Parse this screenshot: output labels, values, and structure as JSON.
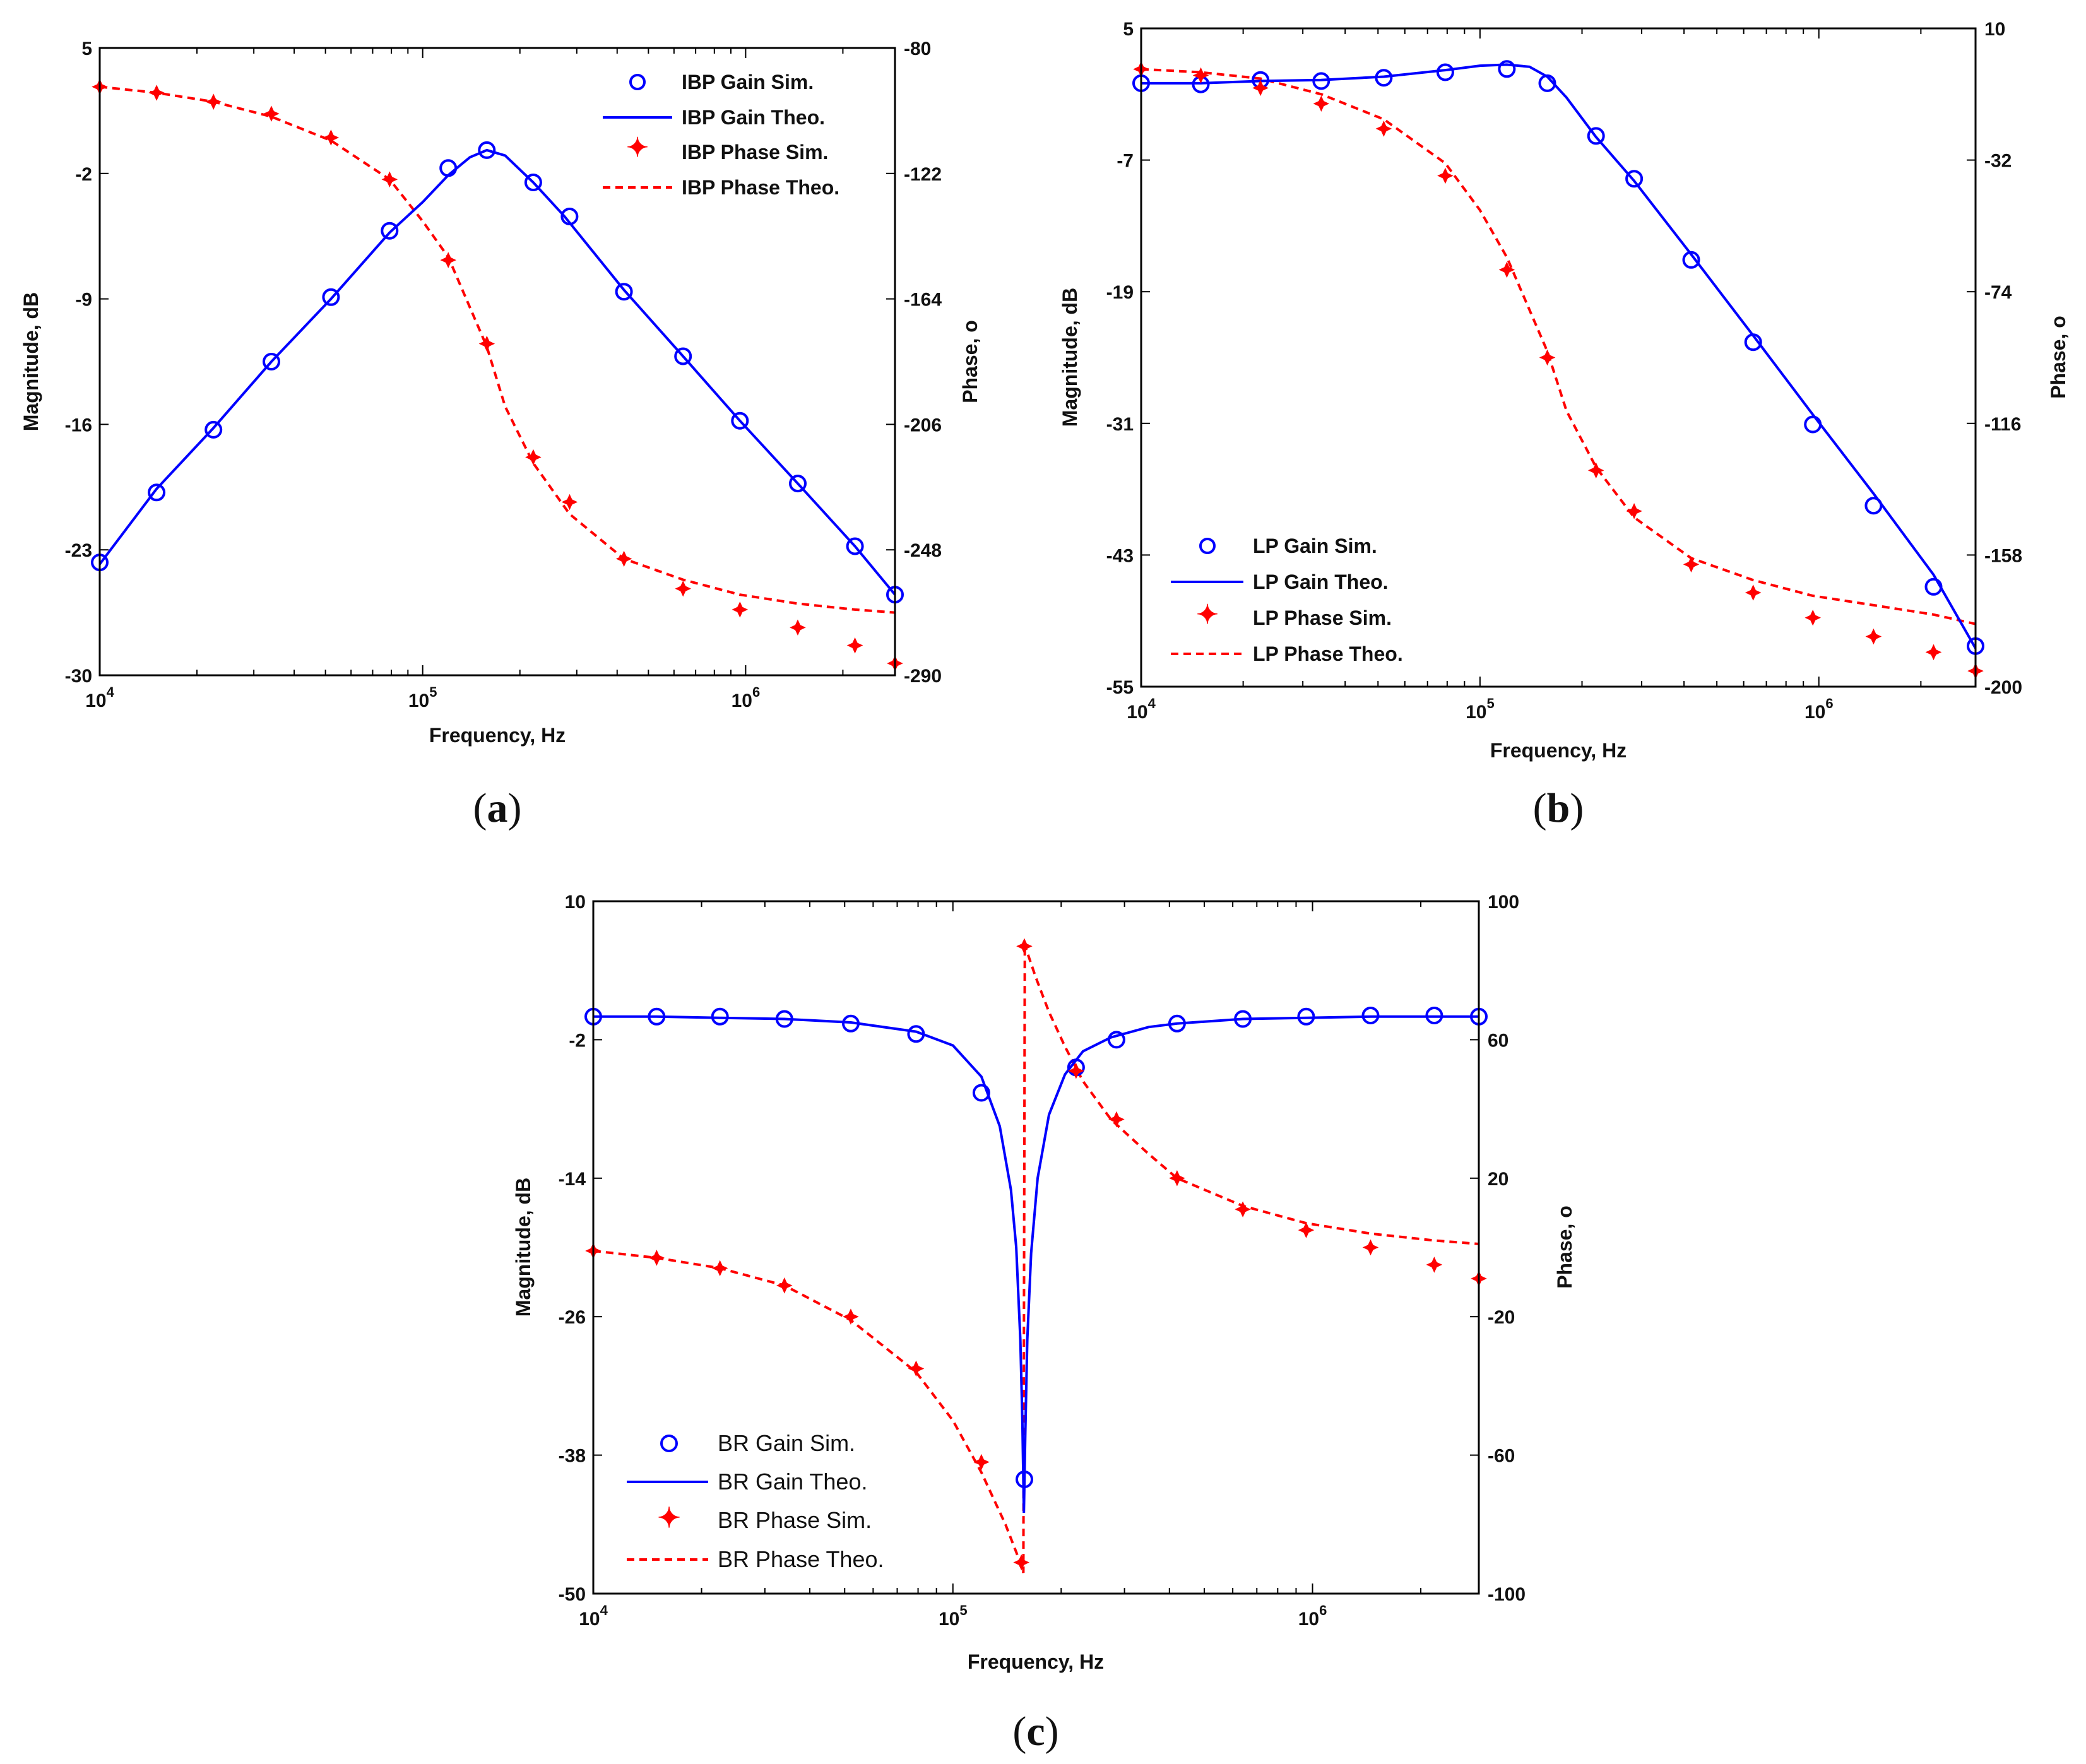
{
  "colors": {
    "gain": "#0000ff",
    "phase": "#ff0000",
    "axis": "#000000"
  },
  "chart_data": [
    {
      "id": "a",
      "type": "line",
      "caption": "a",
      "xlabel": "Frequency, Hz",
      "ylabel": "Magnitude, dB",
      "y2label": "Phase, o",
      "xscale": "log",
      "xlim": [
        10000,
        2900000
      ],
      "xticks": [
        {
          "label": "10",
          "exp": "4"
        },
        {
          "label": "10",
          "exp": "5"
        },
        {
          "label": "10",
          "exp": "6"
        }
      ],
      "xtick_values": [
        10000,
        100000,
        1000000
      ],
      "ylim": [
        -30,
        5
      ],
      "yticks": [
        5,
        -2,
        -9,
        -16,
        -23,
        -30
      ],
      "y2lim": [
        -290,
        -80
      ],
      "y2ticks": [
        -80,
        -122,
        -164,
        -206,
        -248,
        -290
      ],
      "legend_position": "top-right",
      "gain_theory": {
        "name": "IBP Gain Theo.",
        "x": [
          10000,
          15000,
          22500,
          34000,
          52000,
          79000,
          100000,
          120000,
          140000,
          158000,
          180000,
          220000,
          275000,
          420000,
          640000,
          960000,
          1450000,
          2180000,
          2900000
        ],
        "y": [
          -23.8,
          -19.6,
          -16.2,
          -12.5,
          -9.0,
          -5.3,
          -3.6,
          -2.1,
          -1.1,
          -0.7,
          -1.0,
          -2.5,
          -4.4,
          -8.5,
          -12.2,
          -15.8,
          -19.3,
          -22.8,
          -25.5
        ]
      },
      "gain_sim": {
        "name": "IBP Gain Sim.",
        "x": [
          10000,
          15000,
          22500,
          34000,
          52000,
          79000,
          120000,
          158000,
          220000,
          285000,
          420000,
          640000,
          960000,
          1450000,
          2180000,
          2900000
        ],
        "y": [
          -23.7,
          -19.8,
          -16.3,
          -12.5,
          -8.9,
          -5.2,
          -1.7,
          -0.7,
          -2.5,
          -4.4,
          -8.6,
          -12.2,
          -15.8,
          -19.3,
          -22.8,
          -25.5
        ]
      },
      "phase_theory": {
        "name": "IBP Phase Theo.",
        "x": [
          10000,
          15000,
          22500,
          34000,
          52000,
          79000,
          100000,
          120000,
          158000,
          180000,
          220000,
          285000,
          420000,
          640000,
          960000,
          1450000,
          2180000,
          2900000
        ],
        "y": [
          -93,
          -95,
          -98,
          -103,
          -111,
          -124,
          -138,
          -150,
          -180,
          -200,
          -219,
          -236,
          -251,
          -258,
          -263,
          -266,
          -268,
          -269
        ]
      },
      "phase_sim": {
        "name": "IBP Phase Sim.",
        "x": [
          10000,
          15000,
          22500,
          34000,
          52000,
          79000,
          120000,
          158000,
          220000,
          285000,
          420000,
          640000,
          960000,
          1450000,
          2180000,
          2900000
        ],
        "y": [
          -93,
          -95,
          -98,
          -102,
          -110,
          -124,
          -151,
          -179,
          -217,
          -232,
          -251,
          -261,
          -268,
          -274,
          -280,
          -286
        ]
      }
    },
    {
      "id": "b",
      "type": "line",
      "caption": "b",
      "xlabel": "Frequency, Hz",
      "ylabel": "Magnitude, dB",
      "y2label": "Phase, o",
      "xscale": "log",
      "xlim": [
        10000,
        2900000
      ],
      "xticks": [
        {
          "label": "10",
          "exp": "4"
        },
        {
          "label": "10",
          "exp": "5"
        },
        {
          "label": "10",
          "exp": "6"
        }
      ],
      "xtick_values": [
        10000,
        100000,
        1000000
      ],
      "ylim": [
        -55,
        5
      ],
      "yticks": [
        5,
        -7,
        -19,
        -31,
        -43,
        -55
      ],
      "y2lim": [
        -200,
        10
      ],
      "y2ticks": [
        10,
        -32,
        -74,
        -116,
        -158,
        -200
      ],
      "legend_position": "bottom-left",
      "gain_theory": {
        "name": "LP Gain Theo.",
        "x": [
          10000,
          15000,
          22500,
          34000,
          52000,
          79000,
          100000,
          120000,
          140000,
          158000,
          180000,
          220000,
          285000,
          420000,
          640000,
          960000,
          1450000,
          2180000,
          2900000
        ],
        "y": [
          0.0,
          0.0,
          0.2,
          0.3,
          0.6,
          1.2,
          1.6,
          1.7,
          1.5,
          0.6,
          -1.3,
          -4.9,
          -8.9,
          -15.6,
          -23.0,
          -30.2,
          -37.4,
          -44.8,
          -51.5
        ]
      },
      "gain_sim": {
        "name": "LP Gain Sim.",
        "x": [
          10000,
          15000,
          22500,
          34000,
          52000,
          79000,
          120000,
          158000,
          220000,
          285000,
          420000,
          640000,
          960000,
          1450000,
          2180000,
          2900000
        ],
        "y": [
          0.0,
          -0.1,
          0.3,
          0.2,
          0.5,
          1.0,
          1.3,
          0.0,
          -4.8,
          -8.7,
          -16.1,
          -23.6,
          -31.1,
          -38.5,
          -45.9,
          -51.3
        ]
      },
      "phase_theory": {
        "name": "LP Phase Theo.",
        "x": [
          10000,
          15000,
          22500,
          34000,
          52000,
          79000,
          100000,
          120000,
          158000,
          180000,
          220000,
          285000,
          420000,
          640000,
          960000,
          1450000,
          2180000,
          2900000
        ],
        "y": [
          -3,
          -4,
          -6,
          -11,
          -19,
          -33,
          -48,
          -63,
          -93,
          -112,
          -130,
          -146,
          -159,
          -166,
          -171,
          -174,
          -177,
          -180
        ]
      },
      "phase_sim": {
        "name": "LP Phase Sim.",
        "x": [
          10000,
          15000,
          22500,
          34000,
          52000,
          79000,
          120000,
          158000,
          220000,
          285000,
          420000,
          640000,
          960000,
          1450000,
          2180000,
          2900000
        ],
        "y": [
          -3,
          -5,
          -9,
          -14,
          -22,
          -37,
          -67,
          -95,
          -131,
          -144,
          -161,
          -170,
          -178,
          -184,
          -189,
          -195
        ]
      }
    },
    {
      "id": "c",
      "type": "line",
      "caption": "c",
      "xlabel": "Frequency, Hz",
      "ylabel": "Magnitude, dB",
      "y2label": "Phase, o",
      "xscale": "log",
      "xlim": [
        10000,
        2900000
      ],
      "xticks": [
        {
          "label": "10",
          "exp": "4"
        },
        {
          "label": "10",
          "exp": "5"
        },
        {
          "label": "10",
          "exp": "6"
        }
      ],
      "xtick_values": [
        10000,
        100000,
        1000000
      ],
      "ylim": [
        -50,
        10
      ],
      "yticks": [
        10,
        -2,
        -14,
        -26,
        -38,
        -50
      ],
      "y2lim": [
        -100,
        100
      ],
      "y2ticks": [
        100,
        60,
        20,
        -20,
        -60,
        -100
      ],
      "legend_position": "bottom-left",
      "gain_theory": {
        "name": "BR Gain Theo.",
        "x": [
          10000,
          15000,
          22500,
          34000,
          52000,
          79000,
          100000,
          120000,
          135000,
          145000,
          150000,
          154000,
          156000,
          157500,
          159000,
          161000,
          165000,
          172000,
          185000,
          205000,
          230000,
          275000,
          350000,
          420000,
          640000,
          960000,
          1450000,
          2180000,
          2900000
        ],
        "y": [
          0.0,
          0.0,
          -0.1,
          -0.2,
          -0.5,
          -1.3,
          -2.5,
          -5.2,
          -9.5,
          -15.0,
          -20.0,
          -28.0,
          -35.0,
          -43.0,
          -36.0,
          -28.0,
          -20.5,
          -14.0,
          -8.5,
          -5.0,
          -3.0,
          -1.8,
          -0.9,
          -0.6,
          -0.2,
          -0.1,
          0.0,
          0.0,
          0.0
        ]
      },
      "gain_sim": {
        "name": "BR Gain Sim.",
        "x": [
          10000,
          15000,
          22500,
          34000,
          52000,
          79000,
          120000,
          158000,
          220000,
          285000,
          420000,
          640000,
          960000,
          1450000,
          2180000,
          2900000
        ],
        "y": [
          0.0,
          0.0,
          0.0,
          -0.2,
          -0.6,
          -1.5,
          -6.6,
          -40.1,
          -4.4,
          -2.0,
          -0.6,
          -0.2,
          0.0,
          0.1,
          0.1,
          0.0
        ]
      },
      "phase_theory": {
        "name": "BR Phase Theo.",
        "x": [
          10000,
          15000,
          22500,
          34000,
          52000,
          79000,
          100000,
          120000,
          140000,
          150000,
          155000,
          157000,
          158500,
          160000,
          170000,
          185000,
          205000,
          230000,
          275000,
          350000,
          420000,
          640000,
          960000,
          1450000,
          2180000,
          2900000
        ],
        "y": [
          -1,
          -3,
          -6,
          -11,
          -21,
          -36,
          -50,
          -65,
          -80,
          -88,
          -92,
          -94,
          88,
          86,
          78,
          68,
          58,
          48,
          37,
          27,
          20,
          12,
          7,
          4,
          2,
          1
        ]
      },
      "phase_sim": {
        "name": "BR Phase Sim.",
        "x": [
          10000,
          15000,
          22500,
          34000,
          52000,
          79000,
          120000,
          155000,
          158000,
          220000,
          285000,
          420000,
          640000,
          960000,
          1450000,
          2180000,
          2900000
        ],
        "y": [
          -1,
          -3,
          -6,
          -11,
          -20,
          -35,
          -62,
          -91,
          87,
          51,
          37,
          20,
          11,
          5,
          0,
          -5,
          -9
        ]
      }
    }
  ]
}
